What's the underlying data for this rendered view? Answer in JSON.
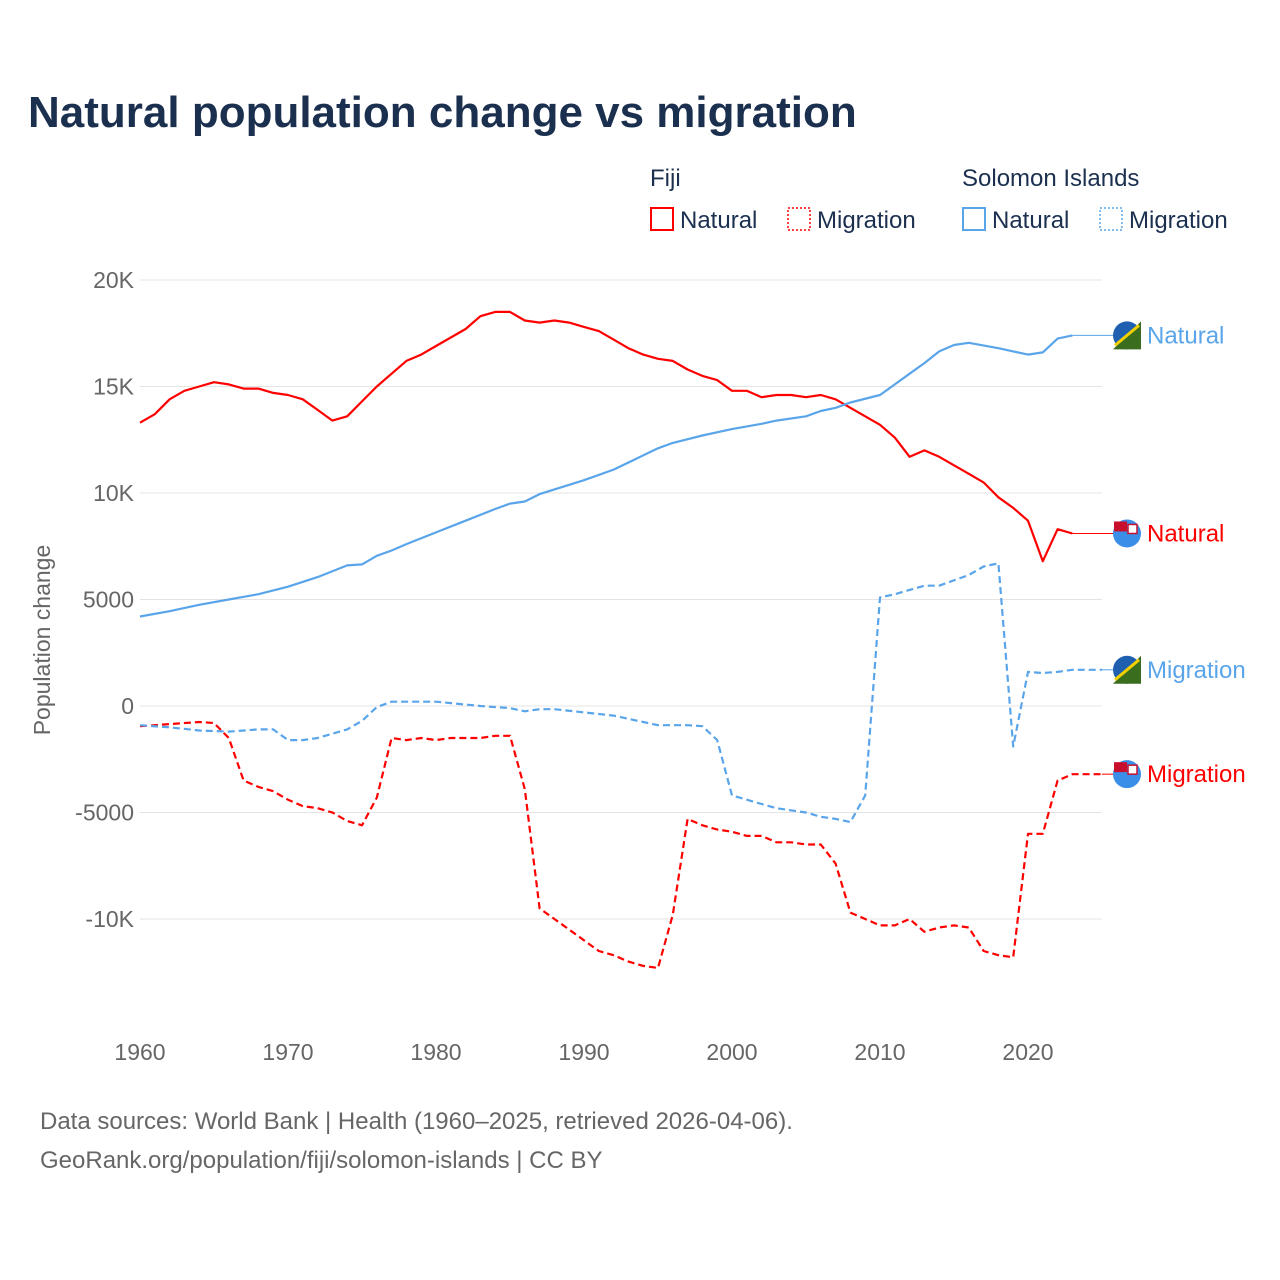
{
  "chart_data": {
    "type": "line",
    "title": "Natural population change vs migration",
    "ylabel": "Population change",
    "xlabel": "",
    "xlim": [
      1960,
      2025
    ],
    "ylim": [
      -14000,
      20000
    ],
    "x_ticks": [
      1960,
      1970,
      1980,
      1990,
      2000,
      2010,
      2020
    ],
    "y_ticks": [
      {
        "v": 20000,
        "label": "20K"
      },
      {
        "v": 15000,
        "label": "15K"
      },
      {
        "v": 10000,
        "label": "10K"
      },
      {
        "v": 5000,
        "label": "5000"
      },
      {
        "v": 0,
        "label": "0"
      },
      {
        "v": -5000,
        "label": "-5000"
      },
      {
        "v": -10000,
        "label": "-10K"
      }
    ],
    "grid": true,
    "legend": {
      "groups": [
        {
          "title": "Fiji",
          "items": [
            {
              "label": "Natural",
              "style": "solid"
            },
            {
              "label": "Migration",
              "style": "dotted"
            }
          ],
          "color": "#ff0000"
        },
        {
          "title": "Solomon Islands",
          "items": [
            {
              "label": "Natural",
              "style": "solid"
            },
            {
              "label": "Migration",
              "style": "dotted"
            }
          ],
          "color": "#5aa5ea"
        }
      ],
      "placement": "top-right"
    },
    "series": [
      {
        "name": "Fiji Natural",
        "country": "Fiji",
        "end_label": "Natural",
        "color": "#ff0000",
        "dash": false,
        "x": [
          1960,
          1961,
          1962,
          1963,
          1964,
          1965,
          1966,
          1967,
          1968,
          1969,
          1970,
          1971,
          1972,
          1973,
          1974,
          1975,
          1976,
          1977,
          1978,
          1979,
          1980,
          1981,
          1982,
          1983,
          1984,
          1985,
          1986,
          1987,
          1988,
          1989,
          1990,
          1991,
          1992,
          1993,
          1994,
          1995,
          1996,
          1997,
          1998,
          1999,
          2000,
          2001,
          2002,
          2003,
          2004,
          2005,
          2006,
          2007,
          2008,
          2009,
          2010,
          2011,
          2012,
          2013,
          2014,
          2015,
          2016,
          2017,
          2018,
          2019,
          2020,
          2021,
          2022,
          2023
        ],
        "y": [
          13300,
          13700,
          14400,
          14800,
          15000,
          15200,
          15100,
          14900,
          14900,
          14700,
          14600,
          14400,
          13900,
          13400,
          13600,
          14300,
          15000,
          15600,
          16200,
          16500,
          16900,
          17300,
          17700,
          18300,
          18500,
          18500,
          18100,
          18000,
          18100,
          18000,
          17800,
          17600,
          17200,
          16800,
          16500,
          16300,
          16200,
          15800,
          15500,
          15300,
          14800,
          14800,
          14500,
          14600,
          14600,
          14500,
          14600,
          14400,
          14000,
          13600,
          13200,
          12600,
          11700,
          12000,
          11700,
          11300,
          10900,
          10500,
          9800,
          9300,
          8700,
          6800,
          8300,
          8100
        ]
      },
      {
        "name": "Fiji Migration",
        "country": "Fiji",
        "end_label": "Migration",
        "color": "#ff0000",
        "dash": true,
        "x": [
          1960,
          1962,
          1964,
          1965,
          1966,
          1967,
          1968,
          1969,
          1970,
          1971,
          1972,
          1973,
          1974,
          1975,
          1976,
          1977,
          1978,
          1979,
          1980,
          1981,
          1982,
          1983,
          1984,
          1985,
          1986,
          1987,
          1988,
          1989,
          1990,
          1991,
          1992,
          1993,
          1994,
          1995,
          1996,
          1997,
          1998,
          1999,
          2000,
          2001,
          2002,
          2003,
          2004,
          2005,
          2006,
          2007,
          2008,
          2009,
          2010,
          2011,
          2012,
          2013,
          2014,
          2015,
          2016,
          2017,
          2018,
          2019,
          2020,
          2021,
          2022,
          2023,
          2024,
          2025
        ],
        "y": [
          -950,
          -850,
          -750,
          -800,
          -1500,
          -3500,
          -3800,
          -4000,
          -4400,
          -4700,
          -4800,
          -5000,
          -5400,
          -5600,
          -4300,
          -1500,
          -1600,
          -1500,
          -1600,
          -1500,
          -1500,
          -1500,
          -1400,
          -1400,
          -3900,
          -9500,
          -10000,
          -10500,
          -11000,
          -11500,
          -11700,
          -12000,
          -12200,
          -12300,
          -9800,
          -5300,
          -5600,
          -5800,
          -5900,
          -6100,
          -6100,
          -6400,
          -6400,
          -6500,
          -6500,
          -7400,
          -9700,
          -10000,
          -10300,
          -10300,
          -10000,
          -10600,
          -10400,
          -10300,
          -10400,
          -11500,
          -11700,
          -11800,
          -6000,
          -6000,
          -3500,
          -3200,
          -3200,
          -3200
        ]
      },
      {
        "name": "Solomon Islands Natural",
        "country": "Solomon Islands",
        "end_label": "Natural",
        "color": "#5aa5ea",
        "dash": false,
        "x": [
          1960,
          1962,
          1964,
          1966,
          1968,
          1970,
          1972,
          1974,
          1975,
          1976,
          1977,
          1978,
          1980,
          1982,
          1984,
          1985,
          1986,
          1987,
          1990,
          1992,
          1995,
          1996,
          1998,
          2000,
          2002,
          2003,
          2005,
          2006,
          2007,
          2008,
          2010,
          2011,
          2012,
          2013,
          2014,
          2015,
          2016,
          2018,
          2020,
          2021,
          2022,
          2023
        ],
        "y": [
          4200,
          4450,
          4750,
          5000,
          5250,
          5600,
          6050,
          6600,
          6650,
          7050,
          7300,
          7600,
          8150,
          8700,
          9250,
          9500,
          9600,
          9950,
          10600,
          11100,
          12100,
          12350,
          12700,
          13000,
          13250,
          13400,
          13600,
          13850,
          14000,
          14250,
          14600,
          15100,
          15600,
          16100,
          16650,
          16950,
          17050,
          16800,
          16500,
          16600,
          17250,
          17400
        ]
      },
      {
        "name": "Solomon Islands Migration",
        "country": "Solomon Islands",
        "end_label": "Migration",
        "color": "#5aa5ea",
        "dash": true,
        "x": [
          1960,
          1962,
          1964,
          1966,
          1968,
          1969,
          1970,
          1971,
          1972,
          1973,
          1974,
          1975,
          1976,
          1977,
          1980,
          1983,
          1985,
          1986,
          1987,
          1988,
          1990,
          1992,
          1994,
          1995,
          1997,
          1998,
          1999,
          2000,
          2001,
          2002,
          2003,
          2005,
          2006,
          2007,
          2008,
          2009,
          2010,
          2011,
          2012,
          2013,
          2014,
          2015,
          2016,
          2017,
          2018,
          2019,
          2020,
          2021,
          2022,
          2023,
          2024,
          2025
        ],
        "y": [
          -900,
          -1000,
          -1150,
          -1200,
          -1100,
          -1100,
          -1600,
          -1600,
          -1500,
          -1300,
          -1100,
          -700,
          -50,
          200,
          200,
          0,
          -100,
          -250,
          -150,
          -150,
          -300,
          -450,
          -750,
          -900,
          -900,
          -950,
          -1600,
          -4200,
          -4400,
          -4600,
          -4800,
          -5000,
          -5200,
          -5300,
          -5450,
          -4200,
          5100,
          5250,
          5450,
          5650,
          5650,
          5900,
          6150,
          6550,
          6700,
          -1900,
          1600,
          1550,
          1600,
          1700,
          1700,
          1700
        ]
      }
    ]
  },
  "footer": {
    "line1": "Data sources: World Bank | Health (1960–2025, retrieved 2026-04-06).",
    "line2": "GeoRank.org/population/fiji/solomon-islands | CC BY"
  }
}
